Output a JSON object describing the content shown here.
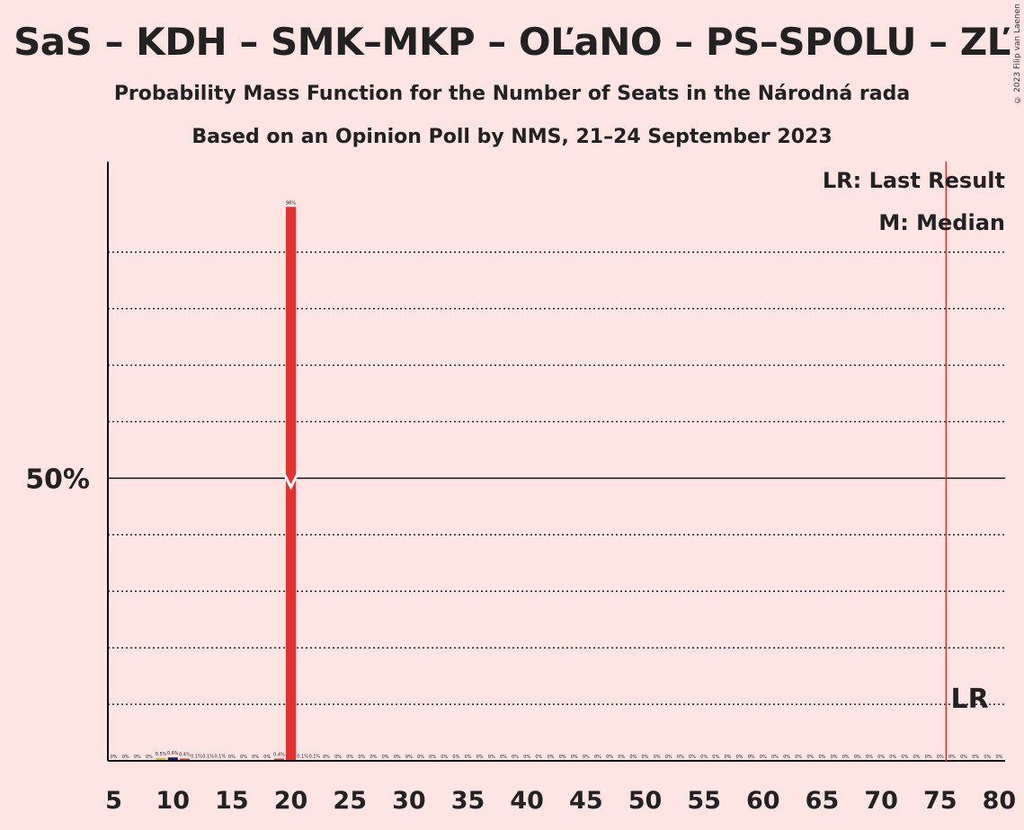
{
  "title": "SaS – KDH – SMK–MKP – OĽaNO – PS–SPOLU – ZĽ",
  "subtitle": "Probability Mass Function for the Number of Seats in the Národná rada",
  "subtitle2": "Based on an Opinion Poll by NMS, 21–24 September 2023",
  "copyright": "© 2023 Filip van Laenen",
  "legend": {
    "last_result": "LR: Last Result",
    "median": "M: Median"
  },
  "colors": {
    "background": "#ffe4e4",
    "bar_main": "#e53030",
    "bar_minor_a": "#d4b830",
    "bar_minor_b": "#1a1a6e",
    "last_result_line": "#e53030"
  },
  "chart_data": {
    "type": "bar",
    "x": [
      5,
      6,
      7,
      8,
      9,
      10,
      11,
      12,
      13,
      14,
      15,
      16,
      17,
      18,
      19,
      20,
      21,
      22,
      23,
      24,
      25,
      26,
      27,
      28,
      29,
      30,
      31,
      32,
      33,
      34,
      35,
      36,
      37,
      38,
      39,
      40,
      41,
      42,
      43,
      44,
      45,
      46,
      47,
      48,
      49,
      50,
      51,
      52,
      53,
      54,
      55,
      56,
      57,
      58,
      59,
      60,
      61,
      62,
      63,
      64,
      65,
      66,
      67,
      68,
      69,
      70,
      71,
      72,
      73,
      74,
      75,
      76,
      77,
      78,
      79,
      80
    ],
    "values": [
      0,
      0,
      0,
      0,
      0.5,
      0.6,
      0.4,
      0.1,
      0.1,
      0.1,
      0,
      0,
      0,
      0,
      0.4,
      98,
      0.1,
      0.1,
      0,
      0,
      0,
      0,
      0,
      0,
      0,
      0,
      0,
      0,
      0,
      0,
      0,
      0,
      0,
      0,
      0,
      0,
      0,
      0,
      0,
      0,
      0,
      0,
      0,
      0,
      0,
      0,
      0,
      0,
      0,
      0,
      0,
      0,
      0,
      0,
      0,
      0,
      0,
      0,
      0,
      0,
      0,
      0,
      0,
      0,
      0,
      0,
      0,
      0,
      0,
      0,
      0,
      0,
      0,
      0,
      0,
      0
    ],
    "value_labels": [
      "0%",
      "0%",
      "0%",
      "0%",
      "0.5%",
      "0.6%",
      "0.4%",
      "0.1%",
      "0.1%",
      "0.1%",
      "0%",
      "0%",
      "0%",
      "0%",
      "0.4%",
      "98%",
      "0.1%",
      "0.1%",
      "0%",
      "0%",
      "0%",
      "0%",
      "0%",
      "0%",
      "0%",
      "0%",
      "0%",
      "0%",
      "0%",
      "0%",
      "0%",
      "0%",
      "0%",
      "0%",
      "0%",
      "0%",
      "0%",
      "0%",
      "0%",
      "0%",
      "0%",
      "0%",
      "0%",
      "0%",
      "0%",
      "0%",
      "0%",
      "0%",
      "0%",
      "0%",
      "0%",
      "0%",
      "0%",
      "0%",
      "0%",
      "0%",
      "0%",
      "0%",
      "0%",
      "0%",
      "0%",
      "0%",
      "0%",
      "0%",
      "0%",
      "0%",
      "0%",
      "0%",
      "0%",
      "0%",
      "0%",
      "0%",
      "0%",
      "0%",
      "0%",
      "0%"
    ],
    "x_tick_labels": [
      "5",
      "10",
      "15",
      "20",
      "25",
      "30",
      "35",
      "40",
      "45",
      "50",
      "55",
      "60",
      "65",
      "70",
      "75",
      "80"
    ],
    "x_ticks": [
      5,
      10,
      15,
      20,
      25,
      30,
      35,
      40,
      45,
      50,
      55,
      60,
      65,
      70,
      75,
      80
    ],
    "y_tick_label": "50%",
    "y_tick": 50,
    "ylim": [
      0,
      106
    ],
    "xlim": [
      5,
      80
    ],
    "gridlines": [
      10,
      20,
      30,
      40,
      60,
      70,
      80,
      90
    ],
    "median": 20,
    "last_result": 76,
    "last_result_label": "LR"
  }
}
